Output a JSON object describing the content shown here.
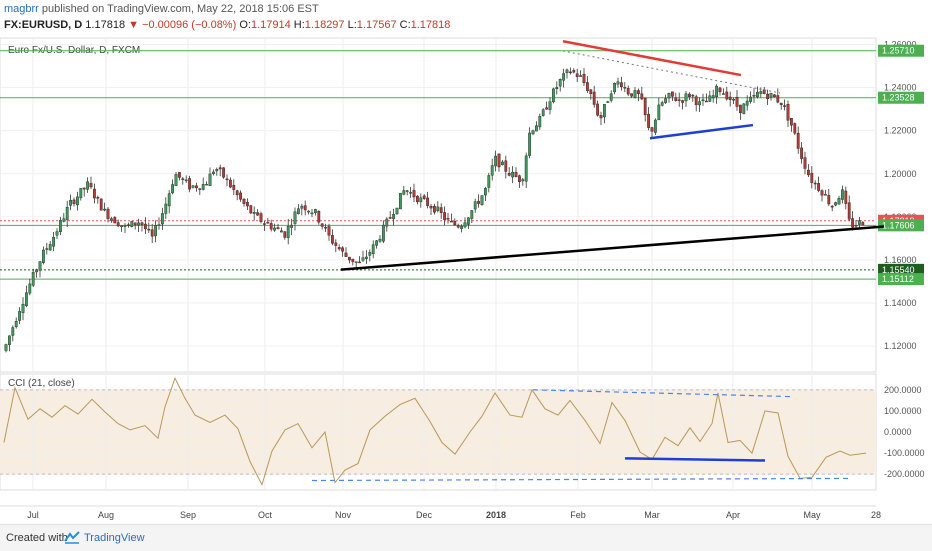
{
  "header": {
    "author": "magbrr",
    "published": "published on TradingView.com, May 22, 2018 15:06 EST",
    "symbol": "FX:EURUSD, D",
    "last": "1.17818",
    "change": "▼ −0.00096 (−0.08%)",
    "o_label": "O:",
    "o": "1.17914",
    "h_label": "H:",
    "h": "1.18297",
    "l_label": "L:",
    "l": "1.17567",
    "c_label": "C:",
    "c": "1.17818"
  },
  "footer": {
    "created": "Created with",
    "brand": "TradingView"
  },
  "chart_data": [
    {
      "type": "candlestick",
      "title": "Euro Fx/U.S. Dollar, D, FXCM",
      "x_months": [
        "Jul",
        "Aug",
        "Sep",
        "Oct",
        "Nov",
        "Dec",
        "2018",
        "Feb",
        "Mar",
        "Apr",
        "May",
        "28"
      ],
      "y_ticks": [
        "1.26000",
        "1.24000",
        "1.22000",
        "1.20000",
        "1.18000",
        "1.16000",
        "1.14000",
        "1.12000"
      ],
      "y_range": [
        1.108,
        1.263
      ],
      "grid": true,
      "price_path": [
        [
          0,
          1.113
        ],
        [
          20,
          1.138
        ],
        [
          42,
          1.162
        ],
        [
          55,
          1.172
        ],
        [
          70,
          1.186
        ],
        [
          88,
          1.195
        ],
        [
          105,
          1.182
        ],
        [
          125,
          1.175
        ],
        [
          140,
          1.178
        ],
        [
          152,
          1.17
        ],
        [
          165,
          1.185
        ],
        [
          175,
          1.2
        ],
        [
          190,
          1.194
        ],
        [
          205,
          1.195
        ],
        [
          215,
          1.203
        ],
        [
          225,
          1.198
        ],
        [
          240,
          1.188
        ],
        [
          255,
          1.18
        ],
        [
          270,
          1.176
        ],
        [
          285,
          1.172
        ],
        [
          300,
          1.186
        ],
        [
          315,
          1.182
        ],
        [
          330,
          1.17
        ],
        [
          345,
          1.162
        ],
        [
          360,
          1.158
        ],
        [
          375,
          1.167
        ],
        [
          390,
          1.18
        ],
        [
          405,
          1.193
        ],
        [
          420,
          1.188
        ],
        [
          435,
          1.184
        ],
        [
          450,
          1.177
        ],
        [
          460,
          1.176
        ],
        [
          472,
          1.183
        ],
        [
          485,
          1.192
        ],
        [
          495,
          1.207
        ],
        [
          510,
          1.2
        ],
        [
          522,
          1.197
        ],
        [
          530,
          1.22
        ],
        [
          540,
          1.225
        ],
        [
          550,
          1.235
        ],
        [
          560,
          1.243
        ],
        [
          570,
          1.248
        ],
        [
          580,
          1.245
        ],
        [
          590,
          1.238
        ],
        [
          600,
          1.225
        ],
        [
          612,
          1.24
        ],
        [
          620,
          1.243
        ],
        [
          628,
          1.238
        ],
        [
          640,
          1.236
        ],
        [
          650,
          1.218
        ],
        [
          660,
          1.232
        ],
        [
          670,
          1.236
        ],
        [
          680,
          1.234
        ],
        [
          690,
          1.237
        ],
        [
          700,
          1.232
        ],
        [
          712,
          1.235
        ],
        [
          718,
          1.24
        ],
        [
          728,
          1.236
        ],
        [
          740,
          1.23
        ],
        [
          748,
          1.233
        ],
        [
          760,
          1.238
        ],
        [
          772,
          1.236
        ],
        [
          782,
          1.233
        ],
        [
          792,
          1.222
        ],
        [
          800,
          1.21
        ],
        [
          810,
          1.198
        ],
        [
          822,
          1.192
        ],
        [
          832,
          1.185
        ],
        [
          842,
          1.192
        ],
        [
          850,
          1.176
        ],
        [
          858,
          1.177
        ],
        [
          866,
          1.1782
        ]
      ],
      "levels": [
        {
          "price": "1.25710",
          "style": "green"
        },
        {
          "price": "1.23528",
          "style": "green"
        },
        {
          "price": "1.17818",
          "style": "last",
          "color": "#e55353"
        },
        {
          "price": "1.17606",
          "style": "green"
        },
        {
          "price": "1.15540",
          "style": "dotted-dark"
        },
        {
          "price": "1.15112",
          "style": "green"
        }
      ],
      "trendlines": [
        {
          "name": "support",
          "color": "#000000",
          "from": [
            341,
            1.1555
          ],
          "to": [
            884,
            1.1755
          ]
        },
        {
          "name": "resistance",
          "color": "#e53935",
          "from": [
            563,
            1.2615
          ],
          "to": [
            741,
            1.2458
          ]
        },
        {
          "name": "range-low",
          "color": "#1e3fd6",
          "from": [
            650,
            1.2165
          ],
          "to": [
            753,
            1.2226
          ]
        },
        {
          "name": "dotted",
          "color": "#777777",
          "from": [
            563,
            1.257
          ],
          "to": [
            780,
            1.2375
          ]
        }
      ]
    },
    {
      "type": "line",
      "title": "CCI (21, close)",
      "y_ticks": [
        "200.0000",
        "100.0000",
        "0.0000",
        "-100.0000",
        "-200.0000"
      ],
      "y_range": [
        -275,
        275
      ],
      "band": [
        -200,
        200
      ],
      "series": [
        {
          "values": [
            [
              4,
              -50
            ],
            [
              15,
              210
            ],
            [
              28,
              60
            ],
            [
              40,
              110
            ],
            [
              52,
              70
            ],
            [
              65,
              125
            ],
            [
              78,
              85
            ],
            [
              92,
              155
            ],
            [
              105,
              95
            ],
            [
              118,
              40
            ],
            [
              130,
              10
            ],
            [
              145,
              30
            ],
            [
              158,
              -30
            ],
            [
              165,
              120
            ],
            [
              175,
              255
            ],
            [
              185,
              160
            ],
            [
              195,
              80
            ],
            [
              210,
              45
            ],
            [
              225,
              80
            ],
            [
              238,
              15
            ],
            [
              250,
              -140
            ],
            [
              262,
              -250
            ],
            [
              272,
              -90
            ],
            [
              285,
              10
            ],
            [
              298,
              40
            ],
            [
              312,
              -75
            ],
            [
              325,
              0
            ],
            [
              335,
              -240
            ],
            [
              345,
              -180
            ],
            [
              358,
              -150
            ],
            [
              370,
              10
            ],
            [
              385,
              75
            ],
            [
              400,
              130
            ],
            [
              415,
              160
            ],
            [
              430,
              50
            ],
            [
              442,
              -50
            ],
            [
              455,
              -105
            ],
            [
              470,
              0
            ],
            [
              482,
              75
            ],
            [
              495,
              185
            ],
            [
              510,
              80
            ],
            [
              522,
              70
            ],
            [
              532,
              200
            ],
            [
              545,
              110
            ],
            [
              558,
              80
            ],
            [
              570,
              150
            ],
            [
              585,
              55
            ],
            [
              600,
              -55
            ],
            [
              612,
              140
            ],
            [
              625,
              55
            ],
            [
              640,
              -95
            ],
            [
              652,
              -130
            ],
            [
              665,
              -25
            ],
            [
              678,
              -65
            ],
            [
              690,
              20
            ],
            [
              700,
              -45
            ],
            [
              712,
              40
            ],
            [
              718,
              185
            ],
            [
              728,
              -50
            ],
            [
              740,
              -40
            ],
            [
              752,
              -100
            ],
            [
              765,
              100
            ],
            [
              778,
              90
            ],
            [
              788,
              -115
            ],
            [
              800,
              -220
            ],
            [
              812,
              -215
            ],
            [
              826,
              -120
            ],
            [
              840,
              -90
            ],
            [
              850,
              -110
            ],
            [
              866,
              -100
            ]
          ]
        }
      ],
      "trendlines": [
        {
          "name": "cci-top",
          "color": "#4a86e8",
          "dashed": true,
          "from": [
            533,
            200
          ],
          "to": [
            790,
            168
          ]
        },
        {
          "name": "cci-low",
          "color": "#1e3fd6",
          "from": [
            625,
            -125
          ],
          "to": [
            765,
            -135
          ]
        },
        {
          "name": "cci-bottom",
          "color": "#4a86e8",
          "dashed": true,
          "from": [
            312,
            -230
          ],
          "to": [
            852,
            -220
          ]
        }
      ]
    }
  ]
}
